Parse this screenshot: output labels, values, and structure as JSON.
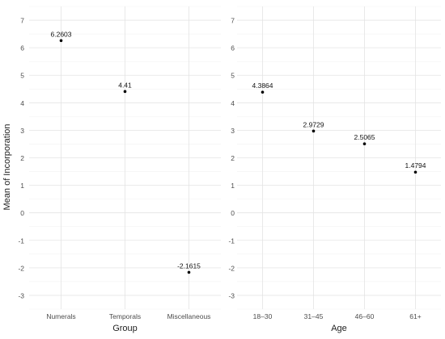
{
  "chart_data": [
    {
      "type": "scatter",
      "xlabel": "Group",
      "ylabel": "Mean of Incorporation",
      "categories": [
        "Numerals",
        "Temporals",
        "Miscellaneous"
      ],
      "values": [
        6.2603,
        4.41,
        -2.1615
      ],
      "data_labels": [
        "6.2603",
        "4.41",
        "-2.1615"
      ],
      "ylim": [
        -3.5,
        7.5
      ],
      "yticks": [
        "-3",
        "-2",
        "-1",
        "0",
        "1",
        "2",
        "3",
        "4",
        "5",
        "6",
        "7"
      ],
      "grid": true,
      "point_color": "#000000"
    },
    {
      "type": "scatter",
      "xlabel": "Age",
      "ylabel": "",
      "categories": [
        "18–30",
        "31–45",
        "46–60",
        "61+"
      ],
      "values": [
        4.3864,
        2.9729,
        2.5065,
        1.4794
      ],
      "data_labels": [
        "4.3864",
        "2.9729",
        "2.5065",
        "1.4794"
      ],
      "ylim": [
        -3.5,
        7.5
      ],
      "yticks": [
        "-3",
        "-2",
        "-1",
        "0",
        "1",
        "2",
        "3",
        "4",
        "5",
        "6",
        "7"
      ],
      "grid": true,
      "point_color": "#000000"
    }
  ]
}
